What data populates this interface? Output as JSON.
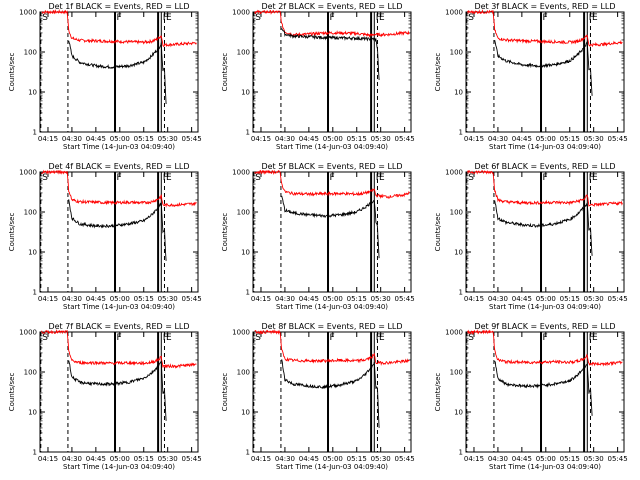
{
  "chart_data": {
    "type": "line",
    "layout": "3x3 grid",
    "xlabel": "Start Time (14-Jun-03 04:09:40)",
    "ylabel": "Counts/sec",
    "x_tick_labels": [
      "04:15",
      "04:30",
      "04:45",
      "05:00",
      "05:15",
      "05:30",
      "05:45"
    ],
    "x_ticks_minutes": [
      15,
      30,
      45,
      60,
      75,
      90,
      105
    ],
    "xlim_minutes": [
      10,
      109
    ],
    "ylim": [
      1,
      1000
    ],
    "y_scale": "log",
    "y_tick_labels": [
      "1",
      "10",
      "100",
      "1000"
    ],
    "y_ticks": [
      1,
      10,
      100,
      1000
    ],
    "series_colors": {
      "black": "#000000",
      "red": "#ff0000"
    },
    "vertical_markers": [
      {
        "label": "S",
        "minute": 10.5,
        "style": "dashed"
      },
      {
        "label": "",
        "minute": 27.5,
        "style": "dashed"
      },
      {
        "label": "F",
        "minute": 57,
        "style": "solid-thick"
      },
      {
        "label": "",
        "minute": 84,
        "style": "solid-thick"
      },
      {
        "label": "F",
        "minute": 86,
        "style": "solid"
      },
      {
        "label": "E",
        "minute": 88,
        "style": "dashed"
      }
    ],
    "panels": [
      {
        "title": "Det 1f BLACK = Events, RED = LLD",
        "red": [
          [
            11,
            1000
          ],
          [
            27,
            1000
          ],
          [
            28,
            350
          ],
          [
            30,
            220
          ],
          [
            35,
            195
          ],
          [
            45,
            190
          ],
          [
            55,
            185
          ],
          [
            65,
            180
          ],
          [
            75,
            175
          ],
          [
            80,
            185
          ],
          [
            84,
            215
          ],
          [
            86,
            260
          ],
          [
            87,
            150
          ],
          [
            95,
            155
          ],
          [
            105,
            165
          ],
          [
            108,
            170
          ]
        ],
        "black": [
          [
            28,
            200
          ],
          [
            30,
            80
          ],
          [
            35,
            55
          ],
          [
            45,
            45
          ],
          [
            55,
            42
          ],
          [
            65,
            45
          ],
          [
            75,
            55
          ],
          [
            80,
            80
          ],
          [
            84,
            120
          ],
          [
            86,
            160
          ],
          [
            87,
            35
          ],
          [
            88,
            40
          ],
          [
            89,
            5
          ]
        ]
      },
      {
        "title": "Det 2f BLACK = Events, RED = LLD",
        "red": [
          [
            11,
            1000
          ],
          [
            27,
            1000
          ],
          [
            28,
            500
          ],
          [
            30,
            320
          ],
          [
            35,
            270
          ],
          [
            45,
            280
          ],
          [
            55,
            300
          ],
          [
            65,
            300
          ],
          [
            75,
            290
          ],
          [
            80,
            275
          ],
          [
            84,
            260
          ],
          [
            86,
            280
          ],
          [
            87,
            270
          ],
          [
            95,
            275
          ],
          [
            105,
            300
          ],
          [
            108,
            300
          ]
        ],
        "black": [
          [
            28,
            400
          ],
          [
            30,
            280
          ],
          [
            35,
            250
          ],
          [
            45,
            240
          ],
          [
            55,
            230
          ],
          [
            65,
            225
          ],
          [
            75,
            220
          ],
          [
            80,
            215
          ],
          [
            84,
            210
          ],
          [
            86,
            215
          ],
          [
            87,
            200
          ],
          [
            88,
            120
          ],
          [
            89,
            20
          ]
        ]
      },
      {
        "title": "Det 3f BLACK = Events, RED = LLD",
        "red": [
          [
            11,
            1000
          ],
          [
            27,
            1000
          ],
          [
            28,
            350
          ],
          [
            30,
            220
          ],
          [
            35,
            200
          ],
          [
            45,
            190
          ],
          [
            55,
            185
          ],
          [
            65,
            180
          ],
          [
            75,
            175
          ],
          [
            80,
            185
          ],
          [
            84,
            220
          ],
          [
            86,
            260
          ],
          [
            87,
            150
          ],
          [
            95,
            155
          ],
          [
            105,
            170
          ],
          [
            108,
            175
          ]
        ],
        "black": [
          [
            28,
            200
          ],
          [
            30,
            80
          ],
          [
            35,
            60
          ],
          [
            45,
            48
          ],
          [
            55,
            45
          ],
          [
            65,
            48
          ],
          [
            75,
            60
          ],
          [
            80,
            85
          ],
          [
            84,
            130
          ],
          [
            86,
            170
          ],
          [
            87,
            35
          ],
          [
            88,
            38
          ],
          [
            89,
            8
          ]
        ]
      },
      {
        "title": "Det 4f BLACK = Events, RED = LLD",
        "red": [
          [
            11,
            1000
          ],
          [
            27,
            1000
          ],
          [
            28,
            350
          ],
          [
            30,
            200
          ],
          [
            35,
            180
          ],
          [
            45,
            175
          ],
          [
            55,
            170
          ],
          [
            65,
            175
          ],
          [
            75,
            170
          ],
          [
            80,
            180
          ],
          [
            84,
            210
          ],
          [
            86,
            250
          ],
          [
            87,
            150
          ],
          [
            95,
            150
          ],
          [
            105,
            160
          ],
          [
            108,
            165
          ]
        ],
        "black": [
          [
            28,
            200
          ],
          [
            30,
            70
          ],
          [
            35,
            50
          ],
          [
            45,
            45
          ],
          [
            55,
            45
          ],
          [
            65,
            50
          ],
          [
            75,
            60
          ],
          [
            80,
            85
          ],
          [
            84,
            130
          ],
          [
            86,
            160
          ],
          [
            87,
            30
          ],
          [
            88,
            35
          ],
          [
            89,
            6
          ]
        ]
      },
      {
        "title": "Det 5f BLACK = Events, RED = LLD",
        "red": [
          [
            11,
            1000
          ],
          [
            27,
            1000
          ],
          [
            28,
            500
          ],
          [
            30,
            320
          ],
          [
            35,
            290
          ],
          [
            45,
            280
          ],
          [
            55,
            285
          ],
          [
            65,
            290
          ],
          [
            75,
            280
          ],
          [
            80,
            295
          ],
          [
            84,
            330
          ],
          [
            86,
            370
          ],
          [
            87,
            260
          ],
          [
            95,
            240
          ],
          [
            105,
            270
          ],
          [
            108,
            300
          ]
        ],
        "black": [
          [
            28,
            250
          ],
          [
            30,
            110
          ],
          [
            35,
            95
          ],
          [
            45,
            85
          ],
          [
            55,
            80
          ],
          [
            65,
            85
          ],
          [
            75,
            100
          ],
          [
            80,
            130
          ],
          [
            84,
            170
          ],
          [
            86,
            200
          ],
          [
            87,
            60
          ],
          [
            88,
            40
          ],
          [
            89,
            7
          ]
        ]
      },
      {
        "title": "Det 6f BLACK = Events, RED = LLD",
        "red": [
          [
            11,
            1000
          ],
          [
            27,
            1000
          ],
          [
            28,
            350
          ],
          [
            30,
            200
          ],
          [
            35,
            180
          ],
          [
            45,
            170
          ],
          [
            55,
            170
          ],
          [
            65,
            175
          ],
          [
            75,
            170
          ],
          [
            80,
            185
          ],
          [
            84,
            210
          ],
          [
            86,
            260
          ],
          [
            87,
            150
          ],
          [
            95,
            155
          ],
          [
            105,
            165
          ],
          [
            108,
            170
          ]
        ],
        "black": [
          [
            28,
            200
          ],
          [
            30,
            70
          ],
          [
            35,
            55
          ],
          [
            45,
            48
          ],
          [
            55,
            45
          ],
          [
            65,
            50
          ],
          [
            75,
            65
          ],
          [
            80,
            90
          ],
          [
            84,
            130
          ],
          [
            86,
            165
          ],
          [
            87,
            35
          ],
          [
            88,
            40
          ],
          [
            89,
            8
          ]
        ]
      },
      {
        "title": "Det 7f BLACK = Events, RED = LLD",
        "red": [
          [
            11,
            1000
          ],
          [
            27,
            1000
          ],
          [
            28,
            350
          ],
          [
            30,
            190
          ],
          [
            35,
            170
          ],
          [
            45,
            170
          ],
          [
            55,
            165
          ],
          [
            65,
            170
          ],
          [
            75,
            165
          ],
          [
            80,
            175
          ],
          [
            84,
            200
          ],
          [
            86,
            240
          ],
          [
            87,
            140
          ],
          [
            95,
            140
          ],
          [
            105,
            150
          ],
          [
            108,
            160
          ]
        ],
        "black": [
          [
            28,
            200
          ],
          [
            30,
            75
          ],
          [
            35,
            55
          ],
          [
            45,
            50
          ],
          [
            55,
            50
          ],
          [
            65,
            55
          ],
          [
            75,
            70
          ],
          [
            80,
            95
          ],
          [
            84,
            140
          ],
          [
            86,
            180
          ],
          [
            87,
            30
          ],
          [
            88,
            35
          ],
          [
            89,
            6
          ]
        ]
      },
      {
        "title": "Det 8f BLACK = Events, RED = LLD",
        "red": [
          [
            11,
            1000
          ],
          [
            27,
            1000
          ],
          [
            28,
            350
          ],
          [
            30,
            210
          ],
          [
            35,
            195
          ],
          [
            45,
            190
          ],
          [
            55,
            190
          ],
          [
            65,
            195
          ],
          [
            75,
            190
          ],
          [
            80,
            200
          ],
          [
            84,
            230
          ],
          [
            86,
            270
          ],
          [
            87,
            170
          ],
          [
            95,
            170
          ],
          [
            105,
            185
          ],
          [
            108,
            195
          ]
        ],
        "black": [
          [
            28,
            200
          ],
          [
            30,
            65
          ],
          [
            35,
            50
          ],
          [
            45,
            45
          ],
          [
            55,
            42
          ],
          [
            65,
            48
          ],
          [
            75,
            60
          ],
          [
            80,
            85
          ],
          [
            84,
            130
          ],
          [
            86,
            170
          ],
          [
            87,
            40
          ],
          [
            88,
            40
          ],
          [
            89,
            4
          ]
        ]
      },
      {
        "title": "Det 9f BLACK = Events, RED = LLD",
        "red": [
          [
            11,
            1000
          ],
          [
            27,
            1000
          ],
          [
            28,
            350
          ],
          [
            30,
            200
          ],
          [
            35,
            180
          ],
          [
            45,
            175
          ],
          [
            55,
            175
          ],
          [
            65,
            180
          ],
          [
            75,
            175
          ],
          [
            80,
            185
          ],
          [
            84,
            215
          ],
          [
            86,
            260
          ],
          [
            87,
            160
          ],
          [
            95,
            160
          ],
          [
            105,
            170
          ],
          [
            108,
            175
          ]
        ],
        "black": [
          [
            28,
            200
          ],
          [
            30,
            70
          ],
          [
            35,
            50
          ],
          [
            45,
            45
          ],
          [
            55,
            45
          ],
          [
            65,
            50
          ],
          [
            75,
            60
          ],
          [
            80,
            85
          ],
          [
            84,
            130
          ],
          [
            86,
            165
          ],
          [
            87,
            30
          ],
          [
            88,
            40
          ],
          [
            89,
            8
          ]
        ]
      }
    ]
  }
}
